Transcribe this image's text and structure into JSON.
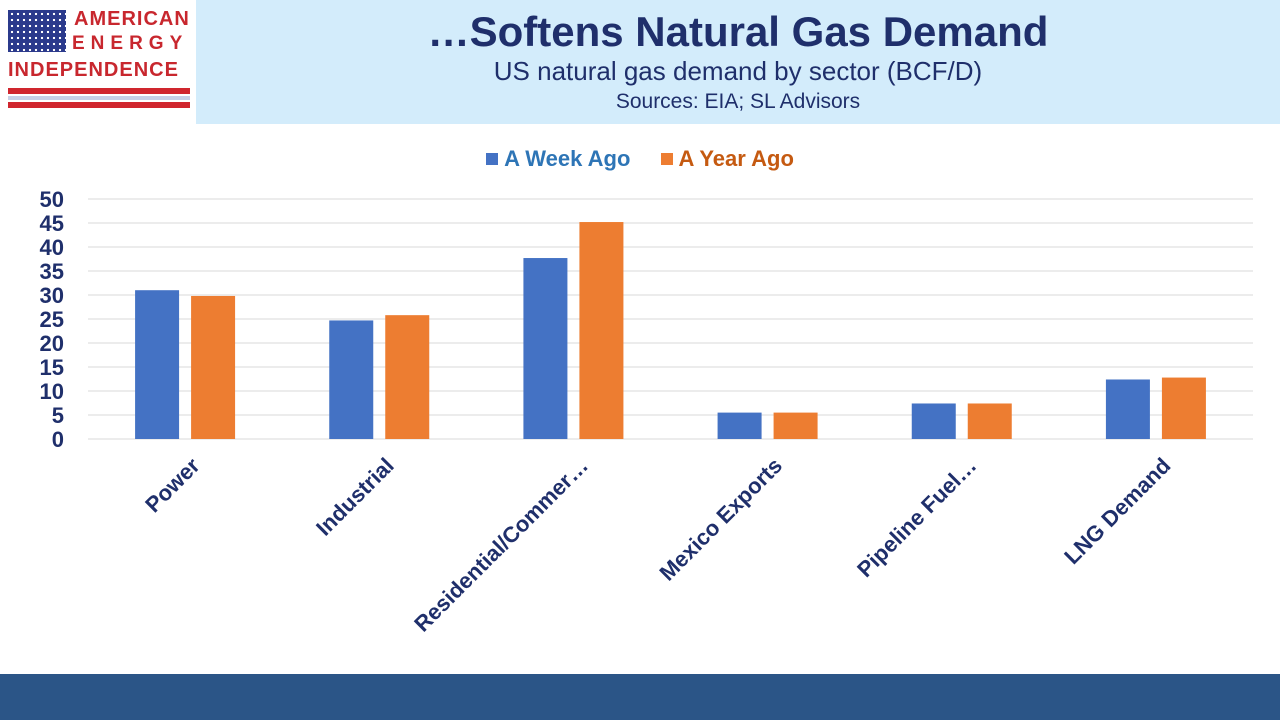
{
  "header": {
    "logo_lines": [
      "AMERICAN",
      "ENERGY",
      "INDEPENDENCE"
    ],
    "title": "…Softens Natural Gas Demand",
    "subtitle": "US natural gas demand by sector (BCF/D)",
    "sources": "Sources: EIA; SL Advisors"
  },
  "colors": {
    "series_week": "#4472c4",
    "series_year": "#ed7d31",
    "axis_text": "#1f2f6b",
    "grid": "#d9d9d9"
  },
  "chart_data": {
    "type": "bar",
    "title": "",
    "xlabel": "",
    "ylabel": "",
    "ylim": [
      0,
      50
    ],
    "yticks": [
      0,
      5,
      10,
      15,
      20,
      25,
      30,
      35,
      40,
      45,
      50
    ],
    "grid": true,
    "legend_position": "top",
    "categories": [
      "Power",
      "Industrial",
      "Residential/Commer…",
      "Mexico Exports",
      "Pipeline Fuel…",
      "LNG Demand"
    ],
    "series": [
      {
        "name": "A Week Ago",
        "values": [
          31,
          24.7,
          37.7,
          5.5,
          7.4,
          12.4
        ]
      },
      {
        "name": "A Year Ago",
        "values": [
          29.8,
          25.8,
          45.2,
          5.5,
          7.4,
          12.8
        ]
      }
    ]
  }
}
